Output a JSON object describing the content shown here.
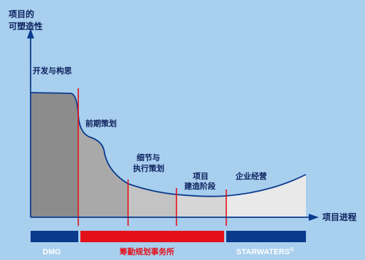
{
  "axes": {
    "y_label_line1": "项目的",
    "y_label_line2": "可塑造性",
    "x_label": "项目进程"
  },
  "phases": {
    "concept": "开发与构思",
    "early_planning": "前期策划",
    "detail_line1": "细节与",
    "detail_line2": "执行策划",
    "construction_line1": "项目",
    "construction_line2": "建造阶段",
    "operation": "企业经营"
  },
  "bottom_bar": {
    "left": "DMG",
    "middle": "筹勤规划事务所",
    "right": "STARWATERS",
    "right_sup": "®"
  },
  "colors": {
    "background": "#a8cfee",
    "navy": "#0a3a8c",
    "red": "#e3101a",
    "axis": "#0a3a8c"
  }
}
